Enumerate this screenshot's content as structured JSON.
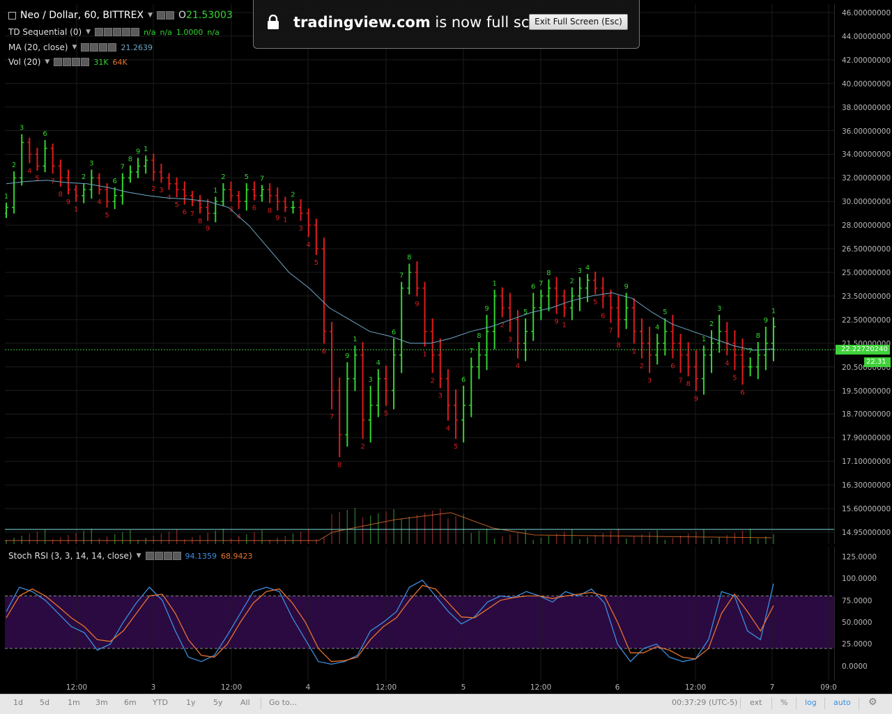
{
  "header": {
    "symbol": "Neo / Dollar, 60, BITTREX",
    "open_label": "O",
    "open_value": "21.53003",
    "indicators": [
      {
        "name": "TD Sequential (0)",
        "values": [
          "n/a",
          "n/a",
          "1.0000",
          "n/a"
        ]
      },
      {
        "name": "MA (20, close)",
        "values": [
          "21.2639"
        ]
      },
      {
        "name": "Vol (20)",
        "values": [
          "31K",
          "64K"
        ]
      }
    ]
  },
  "fullscreen": {
    "site": "tradingview.com",
    "message": "is now full screen",
    "button": "Exit Full Screen (Esc)"
  },
  "price_axis": {
    "labels": [
      "46.00000000",
      "44.00000000",
      "42.00000000",
      "40.00000000",
      "38.00000000",
      "36.00000000",
      "34.00000000",
      "32.00000000",
      "30.00000000",
      "28.00000000",
      "26.50000000",
      "25.00000000",
      "23.50000000",
      "22.50000000",
      "21.50000000",
      "20.50000000",
      "19.50000000",
      "18.70000000",
      "17.90000000",
      "17.10000000",
      "16.30000000",
      "15.60000000",
      "14.95000000"
    ],
    "last_price_tag": "22.22720240",
    "countdown_tag": "22.31"
  },
  "stoch": {
    "name": "Stoch RSI (3, 3, 14, 14, close)",
    "k_value": "94.1359",
    "d_value": "68.9423",
    "axis_labels": [
      "125.0000",
      "100.0000",
      "75.0000",
      "50.0000",
      "25.0000",
      "0.0000"
    ]
  },
  "time_axis": {
    "labels": [
      "12:00",
      "3",
      "12:00",
      "4",
      "12:00",
      "5",
      "12:00",
      "6",
      "12:00",
      "7",
      "09:0"
    ]
  },
  "bottom_bar": {
    "ranges": [
      "1d",
      "5d",
      "1m",
      "3m",
      "6m",
      "YTD",
      "1y",
      "5y",
      "All"
    ],
    "goto": "Go to...",
    "clock": "00:37:29 (UTC-5)",
    "ext": "ext",
    "percent": "%",
    "log": "log",
    "auto": "auto"
  },
  "colors": {
    "up": "#33d62f",
    "down": "#e01c1c",
    "ma": "#6fa9c8",
    "stoch_k": "#3d8ee0",
    "stoch_d": "#e8732e",
    "stoch_band": "#2a0a40",
    "price_line": "#3fd13a",
    "link_blue": "#3a8ee0"
  },
  "chart_data": [
    {
      "type": "candlestick",
      "title": "Neo / Dollar, 60, BITTREX",
      "series": [
        {
          "name": "price_close_approx",
          "values": [
            29.5,
            32,
            35,
            34,
            33,
            34.5,
            33,
            32,
            31,
            30.5,
            31,
            32,
            31,
            30,
            30.5,
            32,
            32.5,
            33,
            33.5,
            32.5,
            32,
            31.5,
            31,
            30.5,
            30,
            29.5,
            29,
            30,
            31,
            30.5,
            30,
            31,
            30.5,
            31,
            30.5,
            30,
            29.5,
            29.5,
            29,
            28,
            26.5,
            22,
            19.5,
            18,
            20,
            21,
            18.5,
            19,
            20,
            19.5,
            21,
            24,
            25,
            24,
            22,
            21,
            20,
            19,
            18.5,
            19,
            20.5,
            21,
            22,
            23.5,
            23,
            22.5,
            21.5,
            22,
            23,
            23.5,
            24,
            23.5,
            23,
            23.5,
            24,
            24.5,
            24,
            23.5,
            23,
            22.5,
            23,
            22,
            21.5,
            21,
            21.5,
            22,
            21.5,
            21,
            20.5,
            20,
            21,
            21.5,
            22,
            21.5,
            21,
            20.5,
            20.5,
            21,
            21.5,
            22.2
          ]
        },
        {
          "name": "MA (20, close)",
          "values": [
            31.5,
            31.7,
            31.8,
            31.6,
            31.5,
            31.2,
            30.8,
            30.5,
            30.3,
            30.2,
            30,
            29.5,
            28,
            26.5,
            25,
            24,
            23,
            22.5,
            22,
            21.8,
            21.5,
            21.5,
            21.7,
            22,
            22.2,
            22.5,
            22.8,
            23,
            23.3,
            23.5,
            23.7,
            23.4,
            22.8,
            22.3,
            22,
            21.7,
            21.4,
            21.2,
            21.26
          ]
        }
      ],
      "price_axis_range": [
        14.95,
        46.0
      ],
      "grid": true
    },
    {
      "type": "line",
      "title": "Stoch RSI (3, 3, 14, 14, close)",
      "series": [
        {
          "name": "K",
          "values": [
            62,
            90,
            85,
            75,
            60,
            45,
            38,
            18,
            25,
            50,
            72,
            90,
            75,
            40,
            10,
            5,
            12,
            35,
            60,
            85,
            90,
            85,
            55,
            30,
            5,
            2,
            5,
            12,
            40,
            50,
            62,
            90,
            98,
            80,
            62,
            48,
            56,
            73,
            80,
            78,
            85,
            80,
            73,
            85,
            80,
            88,
            72,
            25,
            5,
            20,
            25,
            10,
            5,
            8,
            30,
            85,
            80,
            40,
            30,
            94.1359
          ]
        },
        {
          "name": "D",
          "values": [
            55,
            80,
            88,
            80,
            68,
            55,
            45,
            30,
            28,
            40,
            60,
            80,
            82,
            60,
            30,
            12,
            10,
            25,
            50,
            72,
            85,
            88,
            72,
            50,
            20,
            5,
            6,
            10,
            30,
            45,
            55,
            75,
            92,
            88,
            72,
            56,
            55,
            65,
            75,
            78,
            80,
            80,
            77,
            80,
            82,
            84,
            80,
            50,
            15,
            15,
            22,
            18,
            10,
            8,
            20,
            60,
            82,
            62,
            40,
            68.9423
          ]
        }
      ],
      "y_range": [
        0,
        125
      ],
      "bands": [
        20,
        80
      ]
    }
  ]
}
